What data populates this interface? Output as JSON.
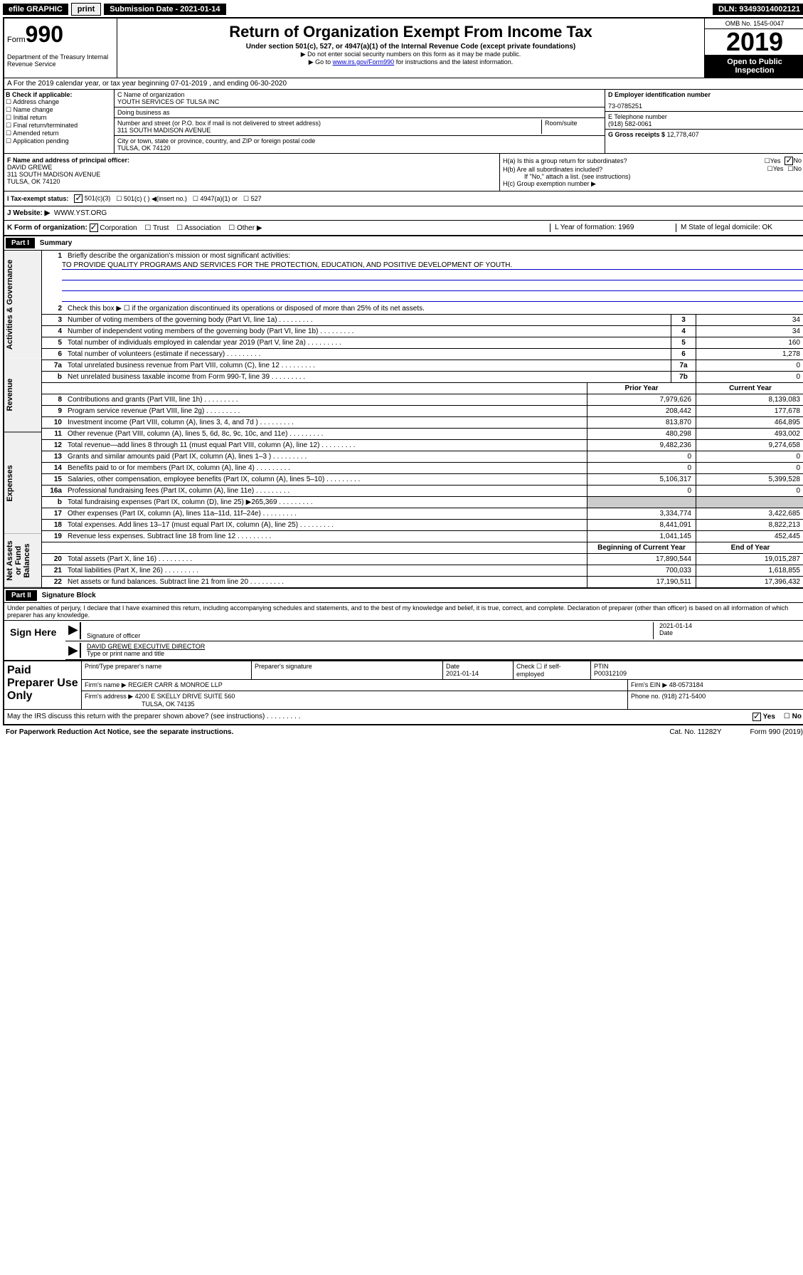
{
  "topbar": {
    "efile": "efile GRAPHIC",
    "print": "print",
    "submission": "Submission Date - 2021-01-14",
    "dln": "DLN: 93493014002121"
  },
  "header": {
    "form_prefix": "Form",
    "form_number": "990",
    "dept": "Department of the Treasury Internal Revenue Service",
    "title": "Return of Organization Exempt From Income Tax",
    "subtitle": "Under section 501(c), 527, or 4947(a)(1) of the Internal Revenue Code (except private foundations)",
    "note1": "▶ Do not enter social security numbers on this form as it may be made public.",
    "note2_pre": "▶ Go to ",
    "note2_link": "www.irs.gov/Form990",
    "note2_post": " for instructions and the latest information.",
    "omb": "OMB No. 1545-0047",
    "year": "2019",
    "open": "Open to Public Inspection"
  },
  "row_a": "A For the 2019 calendar year, or tax year beginning 07-01-2019    , and ending 06-30-2020",
  "box_b": {
    "title": "B Check if applicable:",
    "opts": [
      "Address change",
      "Name change",
      "Initial return",
      "Final return/terminated",
      "Amended return",
      "Application pending"
    ]
  },
  "box_c": {
    "name_label": "C Name of organization",
    "name": "YOUTH SERVICES OF TULSA INC",
    "dba_label": "Doing business as",
    "dba": "",
    "addr_label": "Number and street (or P.O. box if mail is not delivered to street address)",
    "addr": "311 SOUTH MADISON AVENUE",
    "room_label": "Room/suite",
    "city_label": "City or town, state or province, country, and ZIP or foreign postal code",
    "city": "TULSA, OK  74120"
  },
  "box_d": {
    "label": "D Employer identification number",
    "value": "73-0785251"
  },
  "box_e": {
    "label": "E Telephone number",
    "value": "(918) 582-0061"
  },
  "box_g": {
    "label": "G Gross receipts $",
    "value": "12,778,407"
  },
  "box_f": {
    "label": "F  Name and address of principal officer:",
    "name": "DAVID GREWE",
    "addr1": "311 SOUTH MADISON AVENUE",
    "addr2": "TULSA, OK  74120"
  },
  "box_h": {
    "a": "H(a)  Is this a group return for subordinates?",
    "a_yes": "Yes",
    "a_no": "No",
    "b": "H(b)  Are all subordinates included?",
    "b_yes": "Yes",
    "b_no": "No",
    "b_note": "If \"No,\" attach a list. (see instructions)",
    "c": "H(c)  Group exemption number ▶"
  },
  "row_i": {
    "label": "I   Tax-exempt status:",
    "o1": "501(c)(3)",
    "o2": "501(c) (   ) ◀(insert no.)",
    "o3": "4947(a)(1) or",
    "o4": "527"
  },
  "row_j": {
    "label": "J   Website: ▶",
    "value": "WWW.YST.ORG"
  },
  "row_k": {
    "label": "K Form of organization:",
    "o1": "Corporation",
    "o2": "Trust",
    "o3": "Association",
    "o4": "Other ▶",
    "l": "L Year of formation: 1969",
    "m": "M State of legal domicile: OK"
  },
  "part1": {
    "tag": "Part I",
    "title": "Summary"
  },
  "mission": {
    "num": "1",
    "label": "Briefly describe the organization's mission or most significant activities:",
    "text": "TO PROVIDE QUALITY PROGRAMS AND SERVICES FOR THE PROTECTION, EDUCATION, AND POSITIVE DEVELOPMENT OF YOUTH."
  },
  "governance": [
    {
      "n": "2",
      "d": "Check this box ▶ ☐  if the organization discontinued its operations or disposed of more than 25% of its net assets."
    },
    {
      "n": "3",
      "d": "Number of voting members of the governing body (Part VI, line 1a)",
      "rn": "3",
      "v": "34"
    },
    {
      "n": "4",
      "d": "Number of independent voting members of the governing body (Part VI, line 1b)",
      "rn": "4",
      "v": "34"
    },
    {
      "n": "5",
      "d": "Total number of individuals employed in calendar year 2019 (Part V, line 2a)",
      "rn": "5",
      "v": "160"
    },
    {
      "n": "6",
      "d": "Total number of volunteers (estimate if necessary)",
      "rn": "6",
      "v": "1,278"
    },
    {
      "n": "7a",
      "d": "Total unrelated business revenue from Part VIII, column (C), line 12",
      "rn": "7a",
      "v": "0"
    },
    {
      "n": "b",
      "d": "Net unrelated business taxable income from Form 990-T, line 39",
      "rn": "7b",
      "v": "0"
    }
  ],
  "rev_head": {
    "prior": "Prior Year",
    "current": "Current Year"
  },
  "revenue": [
    {
      "n": "8",
      "d": "Contributions and grants (Part VIII, line 1h)",
      "p": "7,979,626",
      "c": "8,139,083"
    },
    {
      "n": "9",
      "d": "Program service revenue (Part VIII, line 2g)",
      "p": "208,442",
      "c": "177,678"
    },
    {
      "n": "10",
      "d": "Investment income (Part VIII, column (A), lines 3, 4, and 7d )",
      "p": "813,870",
      "c": "464,895"
    },
    {
      "n": "11",
      "d": "Other revenue (Part VIII, column (A), lines 5, 6d, 8c, 9c, 10c, and 11e)",
      "p": "480,298",
      "c": "493,002"
    },
    {
      "n": "12",
      "d": "Total revenue—add lines 8 through 11 (must equal Part VIII, column (A), line 12)",
      "p": "9,482,236",
      "c": "9,274,658"
    }
  ],
  "expenses": [
    {
      "n": "13",
      "d": "Grants and similar amounts paid (Part IX, column (A), lines 1–3 )",
      "p": "0",
      "c": "0"
    },
    {
      "n": "14",
      "d": "Benefits paid to or for members (Part IX, column (A), line 4)",
      "p": "0",
      "c": "0"
    },
    {
      "n": "15",
      "d": "Salaries, other compensation, employee benefits (Part IX, column (A), lines 5–10)",
      "p": "5,106,317",
      "c": "5,399,528"
    },
    {
      "n": "16a",
      "d": "Professional fundraising fees (Part IX, column (A), line 11e)",
      "p": "0",
      "c": "0"
    },
    {
      "n": "b",
      "d": "Total fundraising expenses (Part IX, column (D), line 25) ▶265,369",
      "p": "",
      "c": ""
    },
    {
      "n": "17",
      "d": "Other expenses (Part IX, column (A), lines 11a–11d, 11f–24e)",
      "p": "3,334,774",
      "c": "3,422,685"
    },
    {
      "n": "18",
      "d": "Total expenses. Add lines 13–17 (must equal Part IX, column (A), line 25)",
      "p": "8,441,091",
      "c": "8,822,213"
    },
    {
      "n": "19",
      "d": "Revenue less expenses. Subtract line 18 from line 12",
      "p": "1,041,145",
      "c": "452,445"
    }
  ],
  "na_head": {
    "b": "Beginning of Current Year",
    "e": "End of Year"
  },
  "netassets": [
    {
      "n": "20",
      "d": "Total assets (Part X, line 16)",
      "p": "17,890,544",
      "c": "19,015,287"
    },
    {
      "n": "21",
      "d": "Total liabilities (Part X, line 26)",
      "p": "700,033",
      "c": "1,618,855"
    },
    {
      "n": "22",
      "d": "Net assets or fund balances. Subtract line 21 from line 20",
      "p": "17,190,511",
      "c": "17,396,432"
    }
  ],
  "vtabs": {
    "gov": "Activities & Governance",
    "rev": "Revenue",
    "exp": "Expenses",
    "na": "Net Assets or Fund Balances"
  },
  "part2": {
    "tag": "Part II",
    "title": "Signature Block"
  },
  "perjury": "Under penalties of perjury, I declare that I have examined this return, including accompanying schedules and statements, and to the best of my knowledge and belief, it is true, correct, and complete. Declaration of preparer (other than officer) is based on all information of which preparer has any knowledge.",
  "sign": {
    "here": "Sign Here",
    "sig_label": "Signature of officer",
    "date": "2021-01-14",
    "date_label": "Date",
    "name": "DAVID GREWE  EXECUTIVE DIRECTOR",
    "name_label": "Type or print name and title"
  },
  "prep": {
    "title": "Paid Preparer Use Only",
    "h1": "Print/Type preparer's name",
    "h2": "Preparer's signature",
    "h3": "Date",
    "date": "2021-01-14",
    "h4": "Check ☐ if self-employed",
    "h5": "PTIN",
    "ptin": "P00312109",
    "firm_label": "Firm's name    ▶",
    "firm": "REGIER CARR & MONROE LLP",
    "ein_label": "Firm's EIN ▶",
    "ein": "48-0573184",
    "addr_label": "Firm's address ▶",
    "addr1": "4200 E SKELLY DRIVE SUITE 560",
    "addr2": "TULSA, OK  74135",
    "phone_label": "Phone no.",
    "phone": "(918) 271-5400"
  },
  "footer": {
    "discuss": "May the IRS discuss this return with the preparer shown above? (see instructions)",
    "yes": "Yes",
    "no": "No",
    "pra": "For Paperwork Reduction Act Notice, see the separate instructions.",
    "cat": "Cat. No. 11282Y",
    "form": "Form 990 (2019)"
  }
}
